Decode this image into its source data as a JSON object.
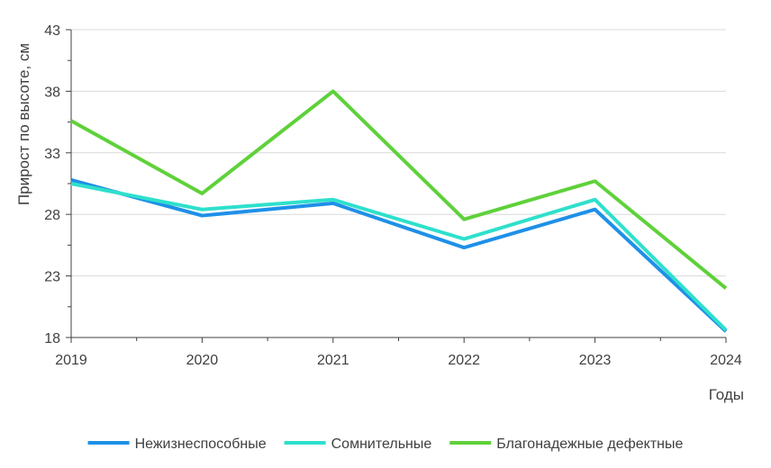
{
  "chart_data": {
    "type": "line",
    "title": "",
    "xlabel": "Годы",
    "ylabel": "Прирост по высоте, см",
    "x": [
      "2019",
      "2020",
      "2021",
      "2022",
      "2023",
      "2024"
    ],
    "yticks": [
      "18",
      "23",
      "28",
      "33",
      "38",
      "43"
    ],
    "ylim": [
      18,
      43
    ],
    "grid": true,
    "legend_position": "bottom",
    "series": [
      {
        "name": "Нежизнеспособные",
        "color": "#1E90E8",
        "values": [
          30.8,
          27.9,
          28.9,
          25.3,
          28.4,
          18.5
        ]
      },
      {
        "name": "Сомнительные",
        "color": "#2EE0CC",
        "values": [
          30.5,
          28.4,
          29.2,
          26.0,
          29.2,
          18.6
        ]
      },
      {
        "name": "Благонадежные дефектные",
        "color": "#5FD13A",
        "values": [
          35.6,
          29.7,
          38.0,
          27.6,
          30.7,
          22.0
        ]
      }
    ]
  }
}
